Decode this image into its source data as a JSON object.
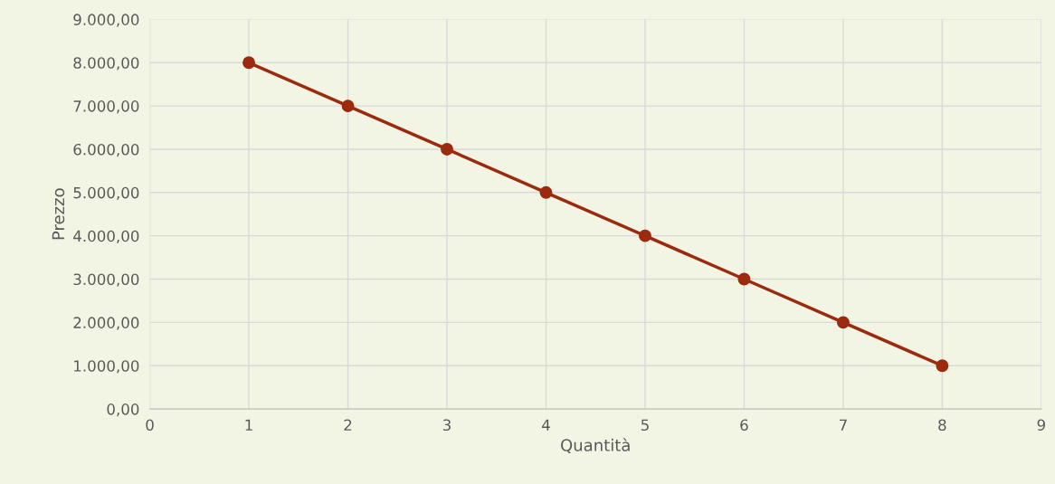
{
  "chart_data": {
    "type": "line",
    "xlabel": "Quantità",
    "ylabel": "Prezzo",
    "x": [
      1,
      2,
      3,
      4,
      5,
      6,
      7,
      8
    ],
    "series": [
      {
        "color": "#9c2a0e",
        "values": [
          8000,
          7000,
          6000,
          5000,
          4000,
          3000,
          2000,
          1000
        ]
      }
    ],
    "xlim": [
      0,
      9
    ],
    "xticks": [
      0,
      1,
      2,
      3,
      4,
      5,
      6,
      7,
      8,
      9
    ],
    "ylim": [
      0,
      9000
    ],
    "yticks": [
      {
        "value": 0,
        "label": "0,00"
      },
      {
        "value": 1000,
        "label": "1.000,00"
      },
      {
        "value": 2000,
        "label": "2.000,00"
      },
      {
        "value": 3000,
        "label": "3.000,00"
      },
      {
        "value": 4000,
        "label": "4.000,00"
      },
      {
        "value": 5000,
        "label": "5.000,00"
      },
      {
        "value": 6000,
        "label": "6.000,00"
      },
      {
        "value": 7000,
        "label": "7.000,00"
      },
      {
        "value": 8000,
        "label": "8.000,00"
      },
      {
        "value": 9000,
        "label": "9.000,00"
      }
    ],
    "grid": true,
    "marker": "circle",
    "line_style": "solid",
    "legend": false
  }
}
